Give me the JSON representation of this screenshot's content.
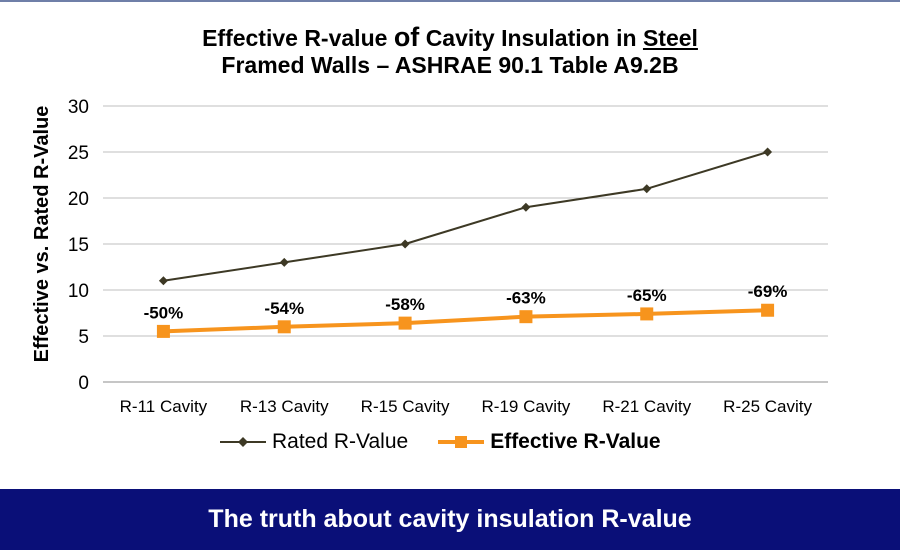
{
  "chart_data": {
    "type": "line",
    "title_part1": "Effective R-value",
    "title_part2": "of",
    "title_part3": "Cavity Insulation in",
    "title_part4": "Steel",
    "title_line2": "Framed Walls – ASHRAE 90.1 Table A9.2B",
    "xlabel": "",
    "ylabel": "Effective vs. Rated R-Value",
    "ylim": [
      0,
      30
    ],
    "yticks": [
      0,
      5,
      10,
      15,
      20,
      25,
      30
    ],
    "grid": true,
    "legend_position": "bottom",
    "categories": [
      "R-11 Cavity",
      "R-13 Cavity",
      "R-15 Cavity",
      "R-19 Cavity",
      "R-21 Cavity",
      "R-25 Cavity"
    ],
    "series": [
      {
        "name": "Rated R-Value",
        "values": [
          11,
          13,
          15,
          19,
          21,
          25
        ],
        "color": "#3d3925",
        "marker": "diamond"
      },
      {
        "name": "Effective R-Value",
        "values": [
          5.5,
          6.0,
          6.4,
          7.1,
          7.4,
          7.8
        ],
        "color": "#f7941d",
        "marker": "square",
        "data_labels": [
          "-50%",
          "-54%",
          "-58%",
          "-63%",
          "-65%",
          "-69%"
        ]
      }
    ]
  },
  "banner": {
    "text": "The truth about cavity insulation R-value",
    "background": "#0a0f78"
  }
}
